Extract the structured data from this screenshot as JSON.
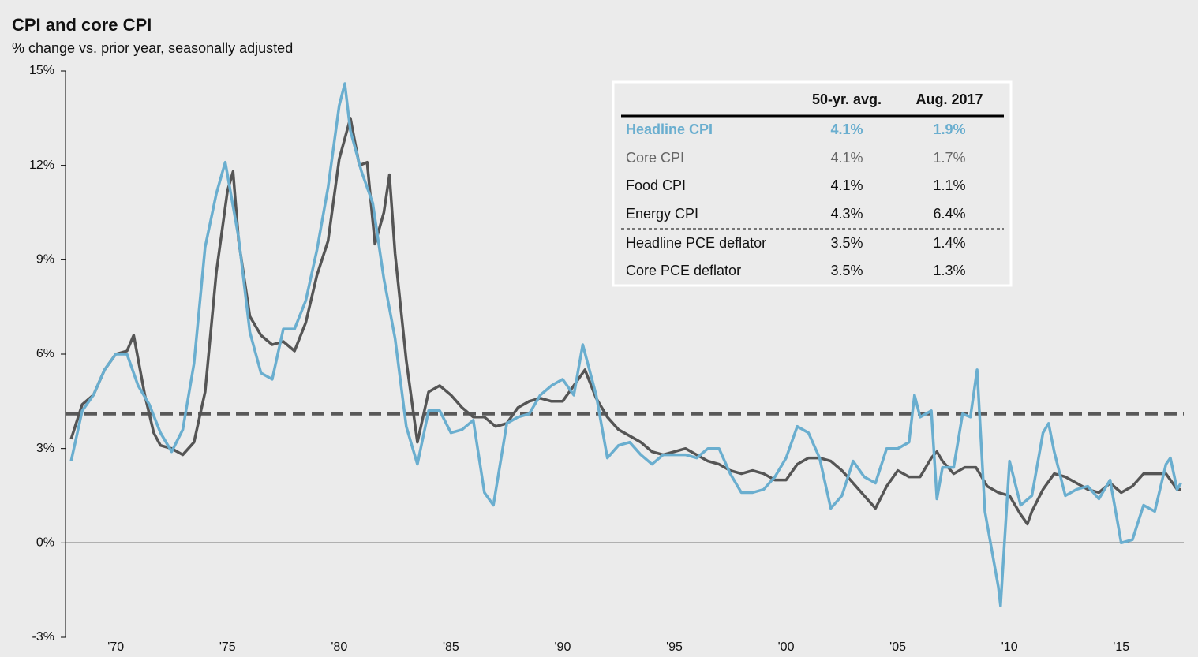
{
  "chart_data": {
    "type": "line",
    "title": "CPI and core CPI",
    "subtitle": "% change vs. prior year, seasonally adjusted",
    "xlim": [
      1967.75,
      2017.8
    ],
    "xticks": [
      {
        "value": 1970,
        "label": "'70"
      },
      {
        "value": 1975,
        "label": "'75"
      },
      {
        "value": 1980,
        "label": "'80"
      },
      {
        "value": 1985,
        "label": "'85"
      },
      {
        "value": 1990,
        "label": "'90"
      },
      {
        "value": 1995,
        "label": "'95"
      },
      {
        "value": 2000,
        "label": "'00"
      },
      {
        "value": 2005,
        "label": "'05"
      },
      {
        "value": 2010,
        "label": "'10"
      },
      {
        "value": 2015,
        "label": "'15"
      }
    ],
    "ylim": [
      -3,
      15
    ],
    "yticks": [
      {
        "value": -3,
        "label": "-3%"
      },
      {
        "value": 0,
        "label": "0%"
      },
      {
        "value": 3,
        "label": "3%"
      },
      {
        "value": 6,
        "label": "6%"
      },
      {
        "value": 9,
        "label": "9%"
      },
      {
        "value": 12,
        "label": "12%"
      },
      {
        "value": 15,
        "label": "15%"
      }
    ],
    "reference_line": {
      "value": 4.1,
      "color": "#595959"
    },
    "series": [
      {
        "name": "Headline CPI",
        "color": "#6aaecf",
        "x": [
          1968.0,
          1968.5,
          1969.0,
          1969.5,
          1970.0,
          1970.5,
          1971.0,
          1971.5,
          1972.0,
          1972.5,
          1973.0,
          1973.5,
          1974.0,
          1974.5,
          1974.9,
          1975.5,
          1976.0,
          1976.5,
          1977.0,
          1977.5,
          1978.0,
          1978.5,
          1979.0,
          1979.5,
          1980.0,
          1980.25,
          1980.5,
          1981.0,
          1981.5,
          1982.0,
          1982.5,
          1983.0,
          1983.5,
          1984.0,
          1984.5,
          1985.0,
          1985.5,
          1986.0,
          1986.5,
          1986.9,
          1987.5,
          1988.0,
          1988.5,
          1989.0,
          1989.5,
          1990.0,
          1990.5,
          1990.9,
          1991.5,
          1992.0,
          1992.5,
          1993.0,
          1993.5,
          1994.0,
          1994.5,
          1995.0,
          1995.5,
          1996.0,
          1996.5,
          1997.0,
          1997.5,
          1998.0,
          1998.5,
          1999.0,
          1999.5,
          2000.0,
          2000.5,
          2001.0,
          2001.5,
          2002.0,
          2002.5,
          2003.0,
          2003.5,
          2004.0,
          2004.5,
          2005.0,
          2005.5,
          2005.75,
          2006.0,
          2006.5,
          2006.75,
          2007.0,
          2007.5,
          2007.9,
          2008.25,
          2008.55,
          2008.9,
          2009.5,
          2009.6,
          2010.0,
          2010.5,
          2011.0,
          2011.5,
          2011.75,
          2012.0,
          2012.5,
          2013.0,
          2013.5,
          2014.0,
          2014.5,
          2015.0,
          2015.5,
          2016.0,
          2016.5,
          2017.0,
          2017.2,
          2017.5,
          2017.67
        ],
        "values": [
          2.6,
          4.2,
          4.7,
          5.5,
          6.0,
          6.0,
          5.0,
          4.4,
          3.5,
          2.9,
          3.6,
          5.7,
          9.4,
          11.1,
          12.1,
          9.7,
          6.7,
          5.4,
          5.2,
          6.8,
          6.8,
          7.7,
          9.3,
          11.3,
          13.9,
          14.6,
          13.1,
          11.8,
          10.8,
          8.4,
          6.5,
          3.7,
          2.5,
          4.2,
          4.2,
          3.5,
          3.6,
          3.9,
          1.6,
          1.2,
          3.8,
          4.0,
          4.1,
          4.7,
          5.0,
          5.2,
          4.7,
          6.3,
          4.7,
          2.7,
          3.1,
          3.2,
          2.8,
          2.5,
          2.8,
          2.8,
          2.8,
          2.7,
          3.0,
          3.0,
          2.2,
          1.6,
          1.6,
          1.7,
          2.1,
          2.7,
          3.7,
          3.5,
          2.7,
          1.1,
          1.5,
          2.6,
          2.1,
          1.9,
          3.0,
          3.0,
          3.2,
          4.7,
          4.0,
          4.2,
          1.4,
          2.4,
          2.4,
          4.1,
          4.0,
          5.5,
          1.0,
          -1.4,
          -2.0,
          2.6,
          1.2,
          1.5,
          3.5,
          3.8,
          2.9,
          1.5,
          1.7,
          1.8,
          1.4,
          2.0,
          0.0,
          0.1,
          1.2,
          1.0,
          2.5,
          2.7,
          1.7,
          1.9
        ]
      },
      {
        "name": "Core CPI",
        "color": "#555555",
        "x": [
          1968.0,
          1968.5,
          1969.0,
          1969.5,
          1970.0,
          1970.5,
          1970.8,
          1971.3,
          1971.7,
          1972.0,
          1972.5,
          1973.0,
          1973.5,
          1974.0,
          1974.5,
          1975.0,
          1975.25,
          1975.5,
          1976.0,
          1976.5,
          1977.0,
          1977.5,
          1978.0,
          1978.5,
          1979.0,
          1979.5,
          1980.0,
          1980.5,
          1980.9,
          1981.25,
          1981.6,
          1982.0,
          1982.25,
          1982.5,
          1983.0,
          1983.5,
          1984.0,
          1984.5,
          1985.0,
          1985.5,
          1986.0,
          1986.5,
          1987.0,
          1987.5,
          1988.0,
          1988.5,
          1989.0,
          1989.5,
          1990.0,
          1990.5,
          1991.0,
          1991.5,
          1992.0,
          1992.5,
          1993.0,
          1993.5,
          1994.0,
          1994.5,
          1995.0,
          1995.5,
          1996.0,
          1996.5,
          1997.0,
          1997.5,
          1998.0,
          1998.5,
          1999.0,
          1999.5,
          2000.0,
          2000.5,
          2001.0,
          2001.5,
          2002.0,
          2002.5,
          2003.0,
          2003.5,
          2004.0,
          2004.5,
          2005.0,
          2005.5,
          2006.0,
          2006.5,
          2006.75,
          2007.0,
          2007.5,
          2008.0,
          2008.5,
          2009.0,
          2009.5,
          2010.0,
          2010.5,
          2010.8,
          2011.0,
          2011.5,
          2012.0,
          2012.5,
          2013.0,
          2013.5,
          2014.0,
          2014.5,
          2015.0,
          2015.5,
          2016.0,
          2016.5,
          2017.0,
          2017.5,
          2017.67
        ],
        "values": [
          3.3,
          4.4,
          4.7,
          5.5,
          6.0,
          6.1,
          6.6,
          4.7,
          3.5,
          3.1,
          3.0,
          2.8,
          3.2,
          4.8,
          8.6,
          11.2,
          11.8,
          9.6,
          7.2,
          6.6,
          6.3,
          6.4,
          6.1,
          7.0,
          8.5,
          9.6,
          12.2,
          13.5,
          12.0,
          12.1,
          9.5,
          10.5,
          11.7,
          9.2,
          5.8,
          3.2,
          4.8,
          5.0,
          4.7,
          4.3,
          4.0,
          4.0,
          3.7,
          3.8,
          4.3,
          4.5,
          4.6,
          4.5,
          4.5,
          5.0,
          5.5,
          4.6,
          4.0,
          3.6,
          3.4,
          3.2,
          2.9,
          2.8,
          2.9,
          3.0,
          2.8,
          2.6,
          2.5,
          2.3,
          2.2,
          2.3,
          2.2,
          2.0,
          2.0,
          2.5,
          2.7,
          2.7,
          2.6,
          2.3,
          1.9,
          1.5,
          1.1,
          1.8,
          2.3,
          2.1,
          2.1,
          2.7,
          2.9,
          2.6,
          2.2,
          2.4,
          2.4,
          1.8,
          1.6,
          1.5,
          0.9,
          0.6,
          1.0,
          1.7,
          2.2,
          2.1,
          1.9,
          1.7,
          1.6,
          1.9,
          1.6,
          1.8,
          2.2,
          2.2,
          2.2,
          1.7,
          1.7
        ]
      }
    ]
  },
  "table": {
    "columns": [
      "50-yr. avg.",
      "Aug. 2017"
    ],
    "rows": [
      {
        "label": "Headline CPI",
        "values": [
          "4.1%",
          "1.9%"
        ],
        "color": "#6aaecf"
      },
      {
        "label": "Core CPI",
        "values": [
          "4.1%",
          "1.7%"
        ],
        "color": "#666666"
      },
      {
        "label": "Food CPI",
        "values": [
          "4.1%",
          "1.1%"
        ],
        "color": "#111111"
      },
      {
        "label": "Energy CPI",
        "values": [
          "4.3%",
          "6.4%"
        ],
        "color": "#111111"
      },
      {
        "label": "Headline PCE deflator",
        "values": [
          "3.5%",
          "1.4%"
        ],
        "color": "#111111"
      },
      {
        "label": "Core PCE deflator",
        "values": [
          "3.5%",
          "1.3%"
        ],
        "color": "#111111"
      }
    ]
  }
}
